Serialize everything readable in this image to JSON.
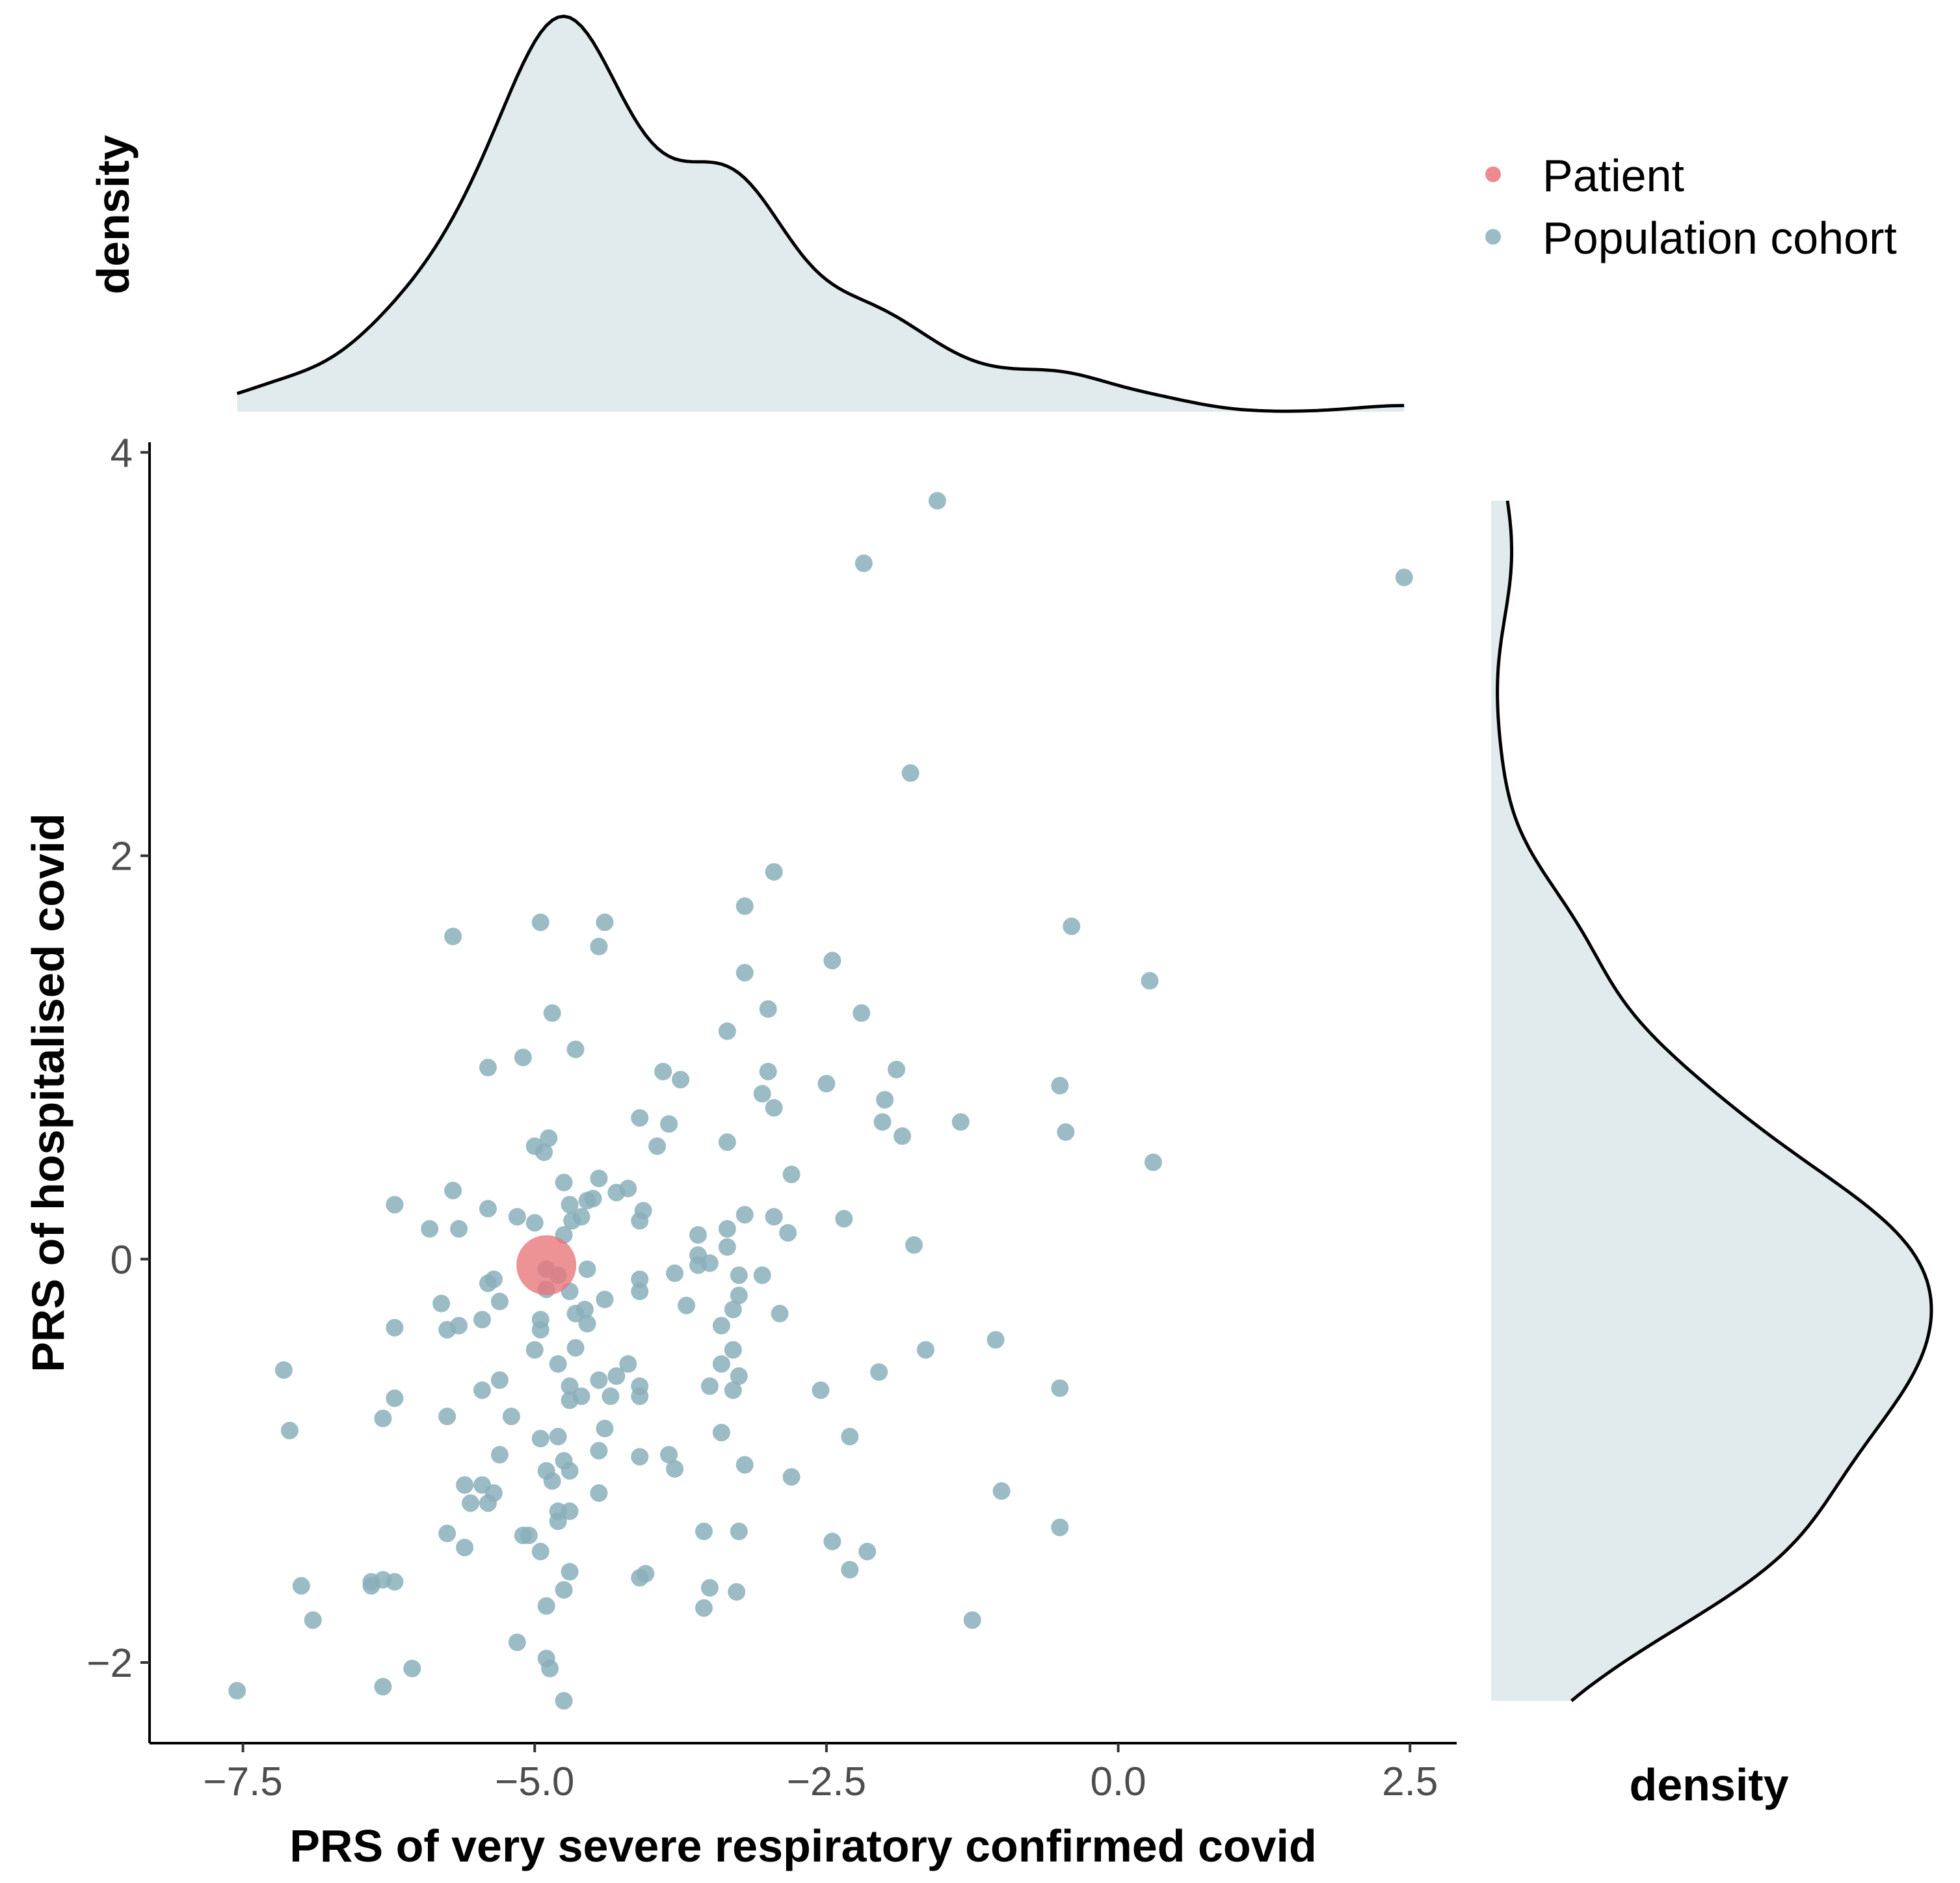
{
  "chart_data": {
    "type": "scatter",
    "xlabel": "PRS of very severe respiratory confirmed covid",
    "ylabel": "PRS of hospitalised covid",
    "xlim": [
      -8.3,
      2.9
    ],
    "ylim": [
      -2.4,
      4.05
    ],
    "x_ticks": [
      -7.5,
      -5.0,
      -2.5,
      0.0,
      2.5
    ],
    "x_tick_labels": [
      "−7.5",
      "−5.0",
      "−2.5",
      "0.0",
      "2.5"
    ],
    "y_ticks": [
      -2,
      0,
      2,
      4
    ],
    "y_tick_labels": [
      "−2",
      "0",
      "2",
      "4"
    ],
    "grid": false,
    "legend_position": "top-right",
    "marginal_top_label": "density",
    "marginal_right_label": "density",
    "colors": {
      "patient": "#e8777a",
      "population": "#8aafbb",
      "density_fill": "#e1eaec",
      "density_line": "#000000"
    },
    "series": [
      {
        "name": "Patient",
        "points": [
          [
            -4.9,
            -0.03
          ]
        ]
      },
      {
        "name": "Population cohort",
        "points": [
          [
            -1.55,
            3.76
          ],
          [
            -2.18,
            3.45
          ],
          [
            2.45,
            3.38
          ],
          [
            -1.78,
            2.41
          ],
          [
            -2.95,
            1.92
          ],
          [
            -3.2,
            1.75
          ],
          [
            -0.4,
            1.65
          ],
          [
            -4.95,
            1.67
          ],
          [
            -4.4,
            1.67
          ],
          [
            -5.7,
            1.6
          ],
          [
            -4.45,
            1.55
          ],
          [
            -2.45,
            1.48
          ],
          [
            -3.2,
            1.42
          ],
          [
            0.27,
            1.38
          ],
          [
            -3.0,
            1.24
          ],
          [
            -4.85,
            1.22
          ],
          [
            -2.2,
            1.22
          ],
          [
            -3.35,
            1.13
          ],
          [
            -4.65,
            1.04
          ],
          [
            -5.1,
            1.0
          ],
          [
            -5.4,
            0.95
          ],
          [
            -3.9,
            0.93
          ],
          [
            -3.0,
            0.93
          ],
          [
            -1.9,
            0.94
          ],
          [
            -3.75,
            0.89
          ],
          [
            -2.5,
            0.87
          ],
          [
            -0.5,
            0.86
          ],
          [
            -3.05,
            0.82
          ],
          [
            -2.0,
            0.79
          ],
          [
            -2.95,
            0.75
          ],
          [
            -4.1,
            0.7
          ],
          [
            -3.85,
            0.67
          ],
          [
            -2.02,
            0.68
          ],
          [
            -1.35,
            0.68
          ],
          [
            -1.85,
            0.61
          ],
          [
            -0.45,
            0.63
          ],
          [
            -4.88,
            0.6
          ],
          [
            -5.0,
            0.56
          ],
          [
            -4.92,
            0.53
          ],
          [
            -3.95,
            0.56
          ],
          [
            -3.35,
            0.58
          ],
          [
            0.3,
            0.48
          ],
          [
            -2.8,
            0.42
          ],
          [
            -4.75,
            0.38
          ],
          [
            -4.45,
            0.4
          ],
          [
            -5.7,
            0.34
          ],
          [
            -4.2,
            0.35
          ],
          [
            -4.3,
            0.33
          ],
          [
            -4.5,
            0.3
          ],
          [
            -4.55,
            0.29
          ],
          [
            -6.2,
            0.27
          ],
          [
            -5.4,
            0.25
          ],
          [
            -4.7,
            0.27
          ],
          [
            -4.07,
            0.24
          ],
          [
            -4.6,
            0.21
          ],
          [
            -4.68,
            0.19
          ],
          [
            -5.15,
            0.21
          ],
          [
            -5.0,
            0.18
          ],
          [
            -4.1,
            0.19
          ],
          [
            -3.2,
            0.22
          ],
          [
            -2.95,
            0.21
          ],
          [
            -2.35,
            0.2
          ],
          [
            -5.9,
            0.15
          ],
          [
            -5.65,
            0.15
          ],
          [
            -4.75,
            0.12
          ],
          [
            -3.6,
            0.12
          ],
          [
            -3.35,
            0.15
          ],
          [
            -2.83,
            0.13
          ],
          [
            -1.75,
            0.07
          ],
          [
            -3.35,
            0.06
          ],
          [
            -3.6,
            0.02
          ],
          [
            -3.5,
            -0.02
          ],
          [
            -4.9,
            -0.05
          ],
          [
            -4.55,
            -0.05
          ],
          [
            -3.6,
            -0.03
          ],
          [
            -3.8,
            -0.07
          ],
          [
            -3.25,
            -0.08
          ],
          [
            -3.05,
            -0.08
          ],
          [
            -5.35,
            -0.1
          ],
          [
            -5.4,
            -0.12
          ],
          [
            -4.8,
            -0.08
          ],
          [
            -4.9,
            -0.15
          ],
          [
            -4.1,
            -0.1
          ],
          [
            -4.7,
            -0.16
          ],
          [
            -4.4,
            -0.2
          ],
          [
            -4.1,
            -0.16
          ],
          [
            -3.25,
            -0.18
          ],
          [
            -5.3,
            -0.21
          ],
          [
            -5.8,
            -0.22
          ],
          [
            -4.65,
            -0.27
          ],
          [
            -4.57,
            -0.25
          ],
          [
            -3.7,
            -0.23
          ],
          [
            -3.3,
            -0.25
          ],
          [
            -2.9,
            -0.27
          ],
          [
            -5.45,
            -0.3
          ],
          [
            -4.95,
            -0.3
          ],
          [
            -4.55,
            -0.32
          ],
          [
            -5.65,
            -0.33
          ],
          [
            -5.75,
            -0.35
          ],
          [
            -6.2,
            -0.34
          ],
          [
            -4.95,
            -0.35
          ],
          [
            -3.4,
            -0.33
          ],
          [
            -1.05,
            -0.4
          ],
          [
            -4.65,
            -0.44
          ],
          [
            -5.0,
            -0.45
          ],
          [
            -3.3,
            -0.45
          ],
          [
            -1.65,
            -0.45
          ],
          [
            -4.8,
            -0.52
          ],
          [
            -4.2,
            -0.52
          ],
          [
            -3.4,
            -0.52
          ],
          [
            -7.15,
            -0.55
          ],
          [
            -2.05,
            -0.56
          ],
          [
            -4.3,
            -0.58
          ],
          [
            -5.3,
            -0.6
          ],
          [
            -4.45,
            -0.6
          ],
          [
            -3.25,
            -0.58
          ],
          [
            -4.1,
            -0.63
          ],
          [
            -4.7,
            -0.63
          ],
          [
            -3.5,
            -0.63
          ],
          [
            -3.3,
            -0.65
          ],
          [
            -5.45,
            -0.65
          ],
          [
            -2.55,
            -0.65
          ],
          [
            -4.6,
            -0.68
          ],
          [
            -4.35,
            -0.68
          ],
          [
            -6.2,
            -0.69
          ],
          [
            -4.7,
            -0.7
          ],
          [
            -4.1,
            -0.68
          ],
          [
            -0.5,
            -0.64
          ],
          [
            -5.75,
            -0.78
          ],
          [
            -5.2,
            -0.78
          ],
          [
            -6.3,
            -0.79
          ],
          [
            -4.4,
            -0.84
          ],
          [
            -7.1,
            -0.85
          ],
          [
            -3.4,
            -0.86
          ],
          [
            -2.3,
            -0.88
          ],
          [
            -4.8,
            -0.88
          ],
          [
            -4.95,
            -0.89
          ],
          [
            -4.45,
            -0.95
          ],
          [
            -5.3,
            -0.97
          ],
          [
            -3.85,
            -0.97
          ],
          [
            -4.1,
            -0.98
          ],
          [
            -4.75,
            -1.0
          ],
          [
            -3.2,
            -1.02
          ],
          [
            -4.9,
            -1.05
          ],
          [
            -3.8,
            -1.04
          ],
          [
            -4.7,
            -1.05
          ],
          [
            -4.85,
            -1.1
          ],
          [
            -2.8,
            -1.08
          ],
          [
            -5.6,
            -1.12
          ],
          [
            -5.45,
            -1.12
          ],
          [
            -5.35,
            -1.16
          ],
          [
            -4.45,
            -1.16
          ],
          [
            -1.0,
            -1.15
          ],
          [
            -5.55,
            -1.21
          ],
          [
            -5.4,
            -1.21
          ],
          [
            -4.8,
            -1.25
          ],
          [
            -4.7,
            -1.25
          ],
          [
            -4.8,
            -1.3
          ],
          [
            -3.55,
            -1.35
          ],
          [
            -3.25,
            -1.35
          ],
          [
            -5.75,
            -1.36
          ],
          [
            -5.05,
            -1.37
          ],
          [
            -5.1,
            -1.37
          ],
          [
            -0.5,
            -1.33
          ],
          [
            -2.45,
            -1.4
          ],
          [
            -5.6,
            -1.43
          ],
          [
            -4.95,
            -1.45
          ],
          [
            -2.15,
            -1.45
          ],
          [
            -4.7,
            -1.55
          ],
          [
            -4.1,
            -1.58
          ],
          [
            -4.05,
            -1.56
          ],
          [
            -2.3,
            -1.54
          ],
          [
            -6.4,
            -1.6
          ],
          [
            -6.3,
            -1.59
          ],
          [
            -6.2,
            -1.6
          ],
          [
            -6.4,
            -1.62
          ],
          [
            -7.0,
            -1.62
          ],
          [
            -3.5,
            -1.63
          ],
          [
            -4.75,
            -1.64
          ],
          [
            -3.27,
            -1.65
          ],
          [
            -4.9,
            -1.72
          ],
          [
            -3.55,
            -1.73
          ],
          [
            -6.9,
            -1.79
          ],
          [
            -1.25,
            -1.79
          ],
          [
            -5.15,
            -1.9
          ],
          [
            -4.9,
            -1.98
          ],
          [
            -4.87,
            -2.03
          ],
          [
            -6.05,
            -2.03
          ],
          [
            -7.55,
            -2.14
          ],
          [
            -6.3,
            -2.12
          ],
          [
            -4.75,
            -2.19
          ]
        ]
      }
    ]
  }
}
